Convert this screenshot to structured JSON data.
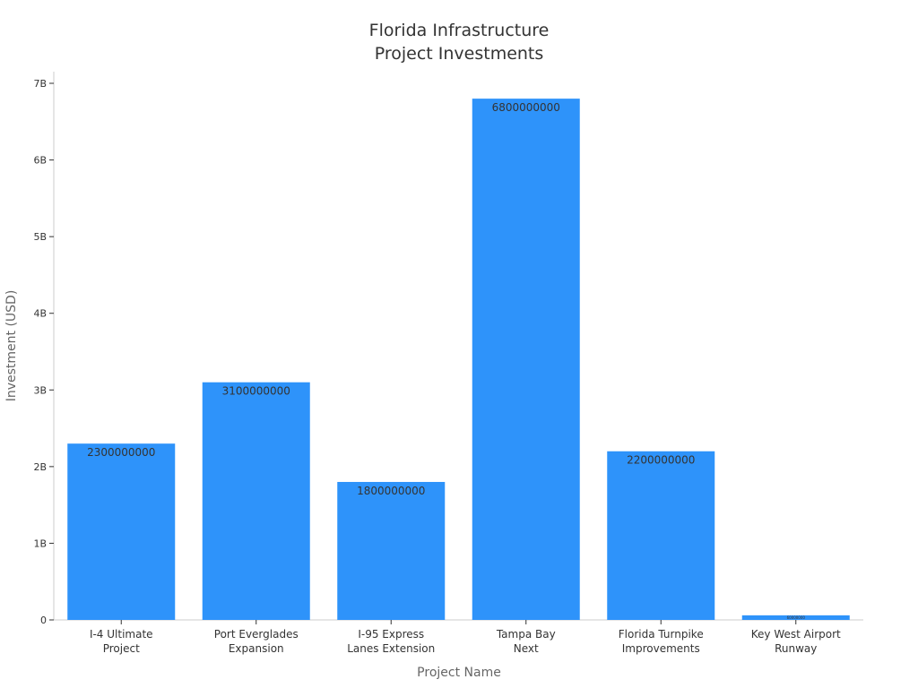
{
  "chart_data": {
    "type": "bar",
    "title_lines": [
      "Florida Infrastructure",
      "Project Investments"
    ],
    "xlabel": "Project Name",
    "ylabel": "Investment (USD)",
    "categories": [
      [
        "I-4 Ultimate",
        "Project"
      ],
      [
        "Port Everglades",
        "Expansion"
      ],
      [
        "I-95 Express",
        "Lanes Extension"
      ],
      [
        "Tampa Bay",
        "Next"
      ],
      [
        "Florida Turnpike",
        "Improvements"
      ],
      [
        "Key West Airport",
        "Runway"
      ]
    ],
    "values": [
      2300000000,
      3100000000,
      1800000000,
      6800000000,
      2200000000,
      60000000
    ],
    "data_labels": [
      "2300000000",
      "3100000000",
      "1800000000",
      "6800000000",
      "2200000000",
      "60000000"
    ],
    "yticks": [
      0,
      1000000000,
      2000000000,
      3000000000,
      4000000000,
      5000000000,
      6000000000,
      7000000000
    ],
    "ytick_labels": [
      "0",
      "1B",
      "2B",
      "3B",
      "4B",
      "5B",
      "6B",
      "7B"
    ],
    "ylim": [
      0,
      7150000000
    ],
    "grid": false,
    "bar_color": "#2e93fa"
  }
}
